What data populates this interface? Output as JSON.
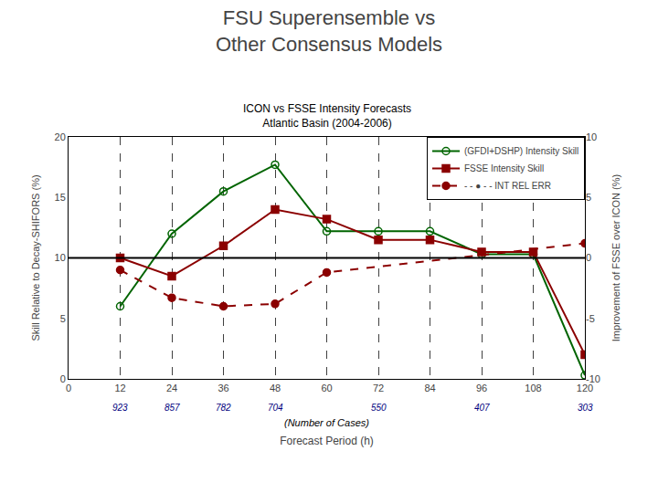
{
  "chart_data": {
    "type": "line",
    "title": "FSU Superensemble vs\nOther Consensus Models",
    "subtitle": "ICON vs FSSE Intensity Forecasts\nAtlantic Basin (2004-2006)",
    "x_label": "Forecast Period (h)",
    "y_label": "Skill Relative to Decay-SHIFORS (%)",
    "y2_label": "Improvement of FSSE over ICON (%)",
    "x": [
      12,
      24,
      36,
      48,
      60,
      72,
      84,
      96,
      108,
      120
    ],
    "series": [
      {
        "name": "(GFDI+DSHP) Intensity Skill",
        "color": "#006400",
        "marker": "circle-open",
        "line_style": "solid",
        "values": [
          6.0,
          12.0,
          15.5,
          17.7,
          12.2,
          12.2,
          12.2,
          10.3,
          10.3,
          0.3
        ]
      },
      {
        "name": "FSSE Intensity Skill",
        "color": "#8B0000",
        "marker": "square",
        "line_style": "solid",
        "values": [
          10.0,
          8.5,
          11.0,
          14.0,
          13.2,
          11.5,
          11.5,
          10.5,
          10.5,
          2.0
        ]
      },
      {
        "name": "- - ● - - INT REL ERR",
        "color": "#8B0000",
        "marker": "circle",
        "line_style": "dashed",
        "x": [
          12,
          24,
          36,
          48,
          60,
          120
        ],
        "values": [
          9.0,
          6.7,
          6.0,
          6.2,
          8.8,
          11.2
        ]
      }
    ],
    "xlim": [
      0,
      120
    ],
    "xticks": [
      0,
      12,
      24,
      36,
      48,
      60,
      72,
      84,
      96,
      108,
      120
    ],
    "ylim": [
      0,
      20
    ],
    "yticks": [
      0,
      5,
      10,
      15,
      20
    ],
    "y2lim": [
      -10,
      10
    ],
    "y2ticks": [
      -10,
      -5,
      0,
      5,
      10
    ],
    "grid": "x",
    "legend": "upper right",
    "hline": 10.0,
    "annotations": [
      {
        "x": 12,
        "text": "923"
      },
      {
        "x": 24,
        "text": "857"
      },
      {
        "x": 36,
        "text": "782"
      },
      {
        "x": 48,
        "text": "704"
      },
      {
        "x": 72,
        "text": "550"
      },
      {
        "x": 96,
        "text": "407"
      },
      {
        "x": 120,
        "text": "303"
      },
      {
        "text": "(Number of Cases)"
      }
    ]
  }
}
